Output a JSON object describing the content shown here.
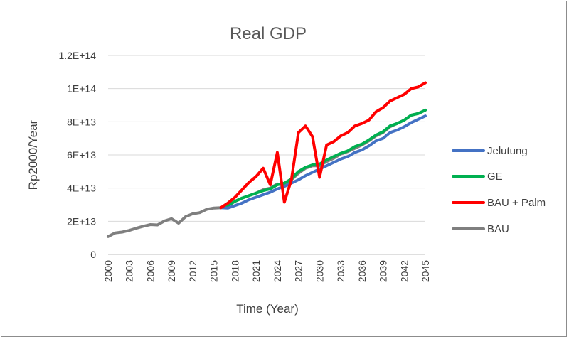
{
  "chart_data": {
    "type": "line",
    "title": "Real GDP",
    "xlabel": "Time (Year)",
    "ylabel": "Rp2000/Year",
    "xlim": [
      2000,
      2045
    ],
    "ylim": [
      0,
      120000000000000.0
    ],
    "yticks": [
      0,
      20000000000000.0,
      40000000000000.0,
      60000000000000.0,
      80000000000000.0,
      100000000000000.0,
      120000000000000.0
    ],
    "ytick_labels": [
      "0",
      "2E+13",
      "4E+13",
      "6E+13",
      "8E+13",
      "1E+14",
      "1.2E+14"
    ],
    "xticks": [
      2000,
      2003,
      2006,
      2009,
      2012,
      2015,
      2018,
      2021,
      2024,
      2027,
      2030,
      2033,
      2036,
      2039,
      2042,
      2045
    ],
    "xtick_labels": [
      "2000",
      "2003",
      "2006",
      "2009",
      "2012",
      "2015",
      "2018",
      "2021",
      "2024",
      "2027",
      "2030",
      "2033",
      "2036",
      "2039",
      "2042",
      "2045"
    ],
    "grid": true,
    "legend_position": "right",
    "series": [
      {
        "name": "Jelutung",
        "color": "#4472c4",
        "x": [
          2016,
          2017,
          2018,
          2019,
          2020,
          2021,
          2022,
          2023,
          2024,
          2025,
          2026,
          2027,
          2028,
          2029,
          2030,
          2031,
          2032,
          2033,
          2034,
          2035,
          2036,
          2037,
          2038,
          2039,
          2040,
          2041,
          2042,
          2043,
          2044,
          2045
        ],
        "values": [
          28200000000000.0,
          28000000000000.0,
          29500000000000.0,
          31000000000000.0,
          33000000000000.0,
          34500000000000.0,
          36000000000000.0,
          37500000000000.0,
          39500000000000.0,
          41000000000000.0,
          43000000000000.0,
          45000000000000.0,
          47500000000000.0,
          49500000000000.0,
          51500000000000.0,
          53500000000000.0,
          55500000000000.0,
          57500000000000.0,
          59000000000000.0,
          61500000000000.0,
          63000000000000.0,
          65500000000000.0,
          68500000000000.0,
          70000000000000.0,
          73500000000000.0,
          75000000000000.0,
          77000000000000.0,
          79500000000000.0,
          81500000000000.0,
          83500000000000.0
        ]
      },
      {
        "name": "GE",
        "color": "#00b050",
        "x": [
          2016,
          2017,
          2018,
          2019,
          2020,
          2021,
          2022,
          2023,
          2024,
          2025,
          2026,
          2027,
          2028,
          2029,
          2030,
          2031,
          2032,
          2033,
          2034,
          2035,
          2036,
          2037,
          2038,
          2039,
          2040,
          2041,
          2042,
          2043,
          2044,
          2045
        ],
        "values": [
          28200000000000.0,
          29500000000000.0,
          32000000000000.0,
          34000000000000.0,
          35500000000000.0,
          37000000000000.0,
          38500000000000.0,
          39500000000000.0,
          42000000000000.0,
          43000000000000.0,
          45500000000000.0,
          50000000000000.0,
          52500000000000.0,
          54000000000000.0,
          54500000000000.0,
          57000000000000.0,
          59000000000000.0,
          61000000000000.0,
          62500000000000.0,
          65000000000000.0,
          66500000000000.0,
          69000000000000.0,
          72000000000000.0,
          74000000000000.0,
          77500000000000.0,
          79000000000000.0,
          81000000000000.0,
          84000000000000.0,
          85000000000000.0,
          87000000000000.0
        ]
      },
      {
        "name": "BAU + Palm",
        "color": "#ff0000",
        "x": [
          2016,
          2017,
          2018,
          2019,
          2020,
          2021,
          2022,
          2023,
          2024,
          2025,
          2026,
          2027,
          2028,
          2029,
          2030,
          2031,
          2032,
          2033,
          2034,
          2035,
          2036,
          2037,
          2038,
          2039,
          2040,
          2041,
          2042,
          2043,
          2044,
          2045
        ],
        "values": [
          28200000000000.0,
          31000000000000.0,
          34500000000000.0,
          39000000000000.0,
          43500000000000.0,
          47000000000000.0,
          52000000000000.0,
          42000000000000.0,
          61500000000000.0,
          31500000000000.0,
          45000000000000.0,
          73500000000000.0,
          77500000000000.0,
          71000000000000.0,
          46500000000000.0,
          66000000000000.0,
          68000000000000.0,
          71500000000000.0,
          73500000000000.0,
          77500000000000.0,
          79000000000000.0,
          81000000000000.0,
          86000000000000.0,
          88500000000000.0,
          92500000000000.0,
          94500000000000.0,
          96500000000000.0,
          100000000000000.0,
          101000000000000.0,
          103500000000000.0
        ]
      },
      {
        "name": "BAU",
        "color": "#7f7f7f",
        "x": [
          2000,
          2001,
          2002,
          2003,
          2004,
          2005,
          2006,
          2007,
          2008,
          2009,
          2010,
          2011,
          2012,
          2013,
          2014,
          2015,
          2016,
          2017,
          2018,
          2019,
          2020,
          2021,
          2022,
          2023,
          2024,
          2025,
          2026,
          2027,
          2028,
          2029,
          2030,
          2031,
          2032,
          2033,
          2034,
          2035,
          2036,
          2037,
          2038,
          2039,
          2040,
          2041,
          2042,
          2043,
          2044,
          2045
        ],
        "values": [
          10800000000000.0,
          13000000000000.0,
          13500000000000.0,
          14500000000000.0,
          15800000000000.0,
          17000000000000.0,
          18000000000000.0,
          17800000000000.0,
          20200000000000.0,
          21500000000000.0,
          18800000000000.0,
          22800000000000.0,
          24500000000000.0,
          25200000000000.0,
          27200000000000.0,
          28000000000000.0,
          28200000000000.0,
          29500000000000.0,
          32000000000000.0,
          34000000000000.0,
          35500000000000.0,
          37000000000000.0,
          39000000000000.0,
          40000000000000.0,
          42500000000000.0,
          41500000000000.0,
          45000000000000.0,
          49000000000000.0,
          52000000000000.0,
          53500000000000.0,
          53500000000000.0,
          56000000000000.0,
          58000000000000.0,
          60500000000000.0,
          62000000000000.0,
          64000000000000.0,
          66000000000000.0,
          68500000000000.0,
          71500000000000.0,
          73500000000000.0,
          77000000000000.0,
          79000000000000.0,
          81000000000000.0,
          84000000000000.0,
          85000000000000.0,
          87000000000000.0
        ]
      }
    ]
  }
}
